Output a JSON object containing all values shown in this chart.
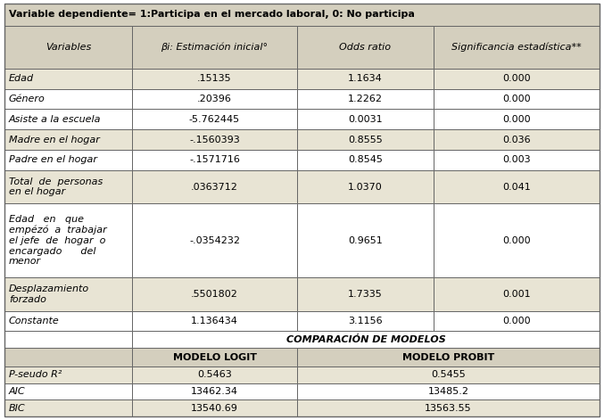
{
  "title_row": "Variable dependiente= 1:Participa en el mercado laboral, 0: No participa",
  "header": [
    "Variables",
    "βi: Estimación inicial°",
    "Odds ratio",
    "Significancia estadística**"
  ],
  "rows": [
    [
      "Edad",
      ".15135",
      "1.1634",
      "0.000"
    ],
    [
      "Género",
      ".20396",
      "1.2262",
      "0.000"
    ],
    [
      "Asiste a la escuela",
      "-5.762445",
      "0.0031",
      "0.000"
    ],
    [
      "Madre en el hogar",
      "-.1560393",
      "0.8555",
      "0.036"
    ],
    [
      "Padre en el hogar",
      "-.1571716",
      "0.8545",
      "0.003"
    ],
    [
      "Total  de  personas\nen el hogar",
      ".0363712",
      "1.0370",
      "0.041"
    ],
    [
      "Edad   en   que\nempézó  a  trabajar\nel jefe  de  hogar  o\nencargado      del\nmenor",
      "-.0354232",
      "0.9651",
      "0.000"
    ],
    [
      "Desplazamiento\nforzado",
      ".5501802",
      "1.7335",
      "0.001"
    ],
    [
      "Constante",
      "1.136434",
      "3.1156",
      "0.000"
    ]
  ],
  "comparison_label": "COMPARACIÓN DE MODELOS",
  "model_headers": [
    "MODELO LOGIT",
    "MODELO PROBIT"
  ],
  "comparison_rows": [
    [
      "P-seudo R²",
      "0.5463",
      "0.5455"
    ],
    [
      "AIC",
      "13462.34",
      "13485.2"
    ],
    [
      "BIC",
      "13540.69",
      "13563.55"
    ]
  ],
  "bg_header": "#d4cfbe",
  "bg_tan": "#e8e4d4",
  "bg_white": "#ffffff",
  "border_color": "#666666",
  "text_color": "#000000",
  "font_size": 8.0
}
